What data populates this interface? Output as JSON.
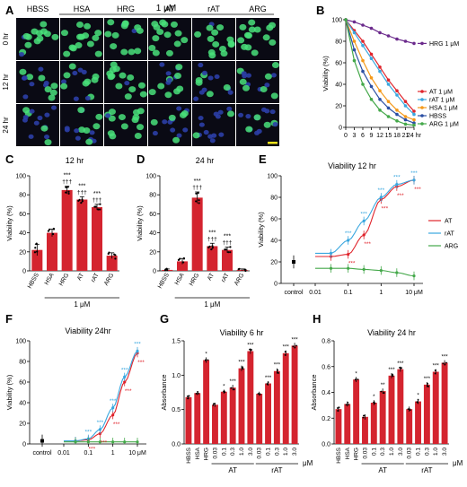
{
  "panel_letters": {
    "A": "A",
    "B": "B",
    "C": "C",
    "D": "D",
    "E": "E",
    "F": "F",
    "G": "G",
    "H": "H"
  },
  "microscopy": {
    "concentration": "1 μM",
    "columns": [
      "HBSS",
      "HSA",
      "HRG",
      "AT",
      "rAT",
      "ARG"
    ],
    "rows": [
      "0 hr",
      "12 hr",
      "24 hr"
    ],
    "colors": {
      "nuclei": "#2b3ea6",
      "cells": "#49e07a",
      "background": "#0a0a14",
      "scale_bar": "#f2e21a"
    }
  },
  "chart_data": [
    {
      "panel": "B",
      "type": "line",
      "ylabel": "Viability (%)",
      "xlabel": "",
      "x": [
        0,
        3,
        6,
        9,
        12,
        15,
        18,
        21,
        24
      ],
      "xticks": [
        "0",
        "3",
        "6",
        "9",
        "12",
        "15",
        "18",
        "21",
        "24 hr"
      ],
      "ylim": [
        0,
        100
      ],
      "yticks": [
        0,
        20,
        40,
        60,
        80,
        100
      ],
      "series": [
        {
          "name": "HRG 1 μM",
          "color": "#6b2a8c",
          "values": [
            100,
            98,
            95,
            92,
            88,
            85,
            82,
            80,
            78
          ]
        },
        {
          "name": "AT 1 μM",
          "color": "#e0242c",
          "values": [
            100,
            90,
            80,
            68,
            56,
            44,
            34,
            24,
            15
          ]
        },
        {
          "name": "rAT 1 μM",
          "color": "#3aa7df",
          "values": [
            100,
            88,
            76,
            64,
            52,
            40,
            30,
            20,
            12
          ]
        },
        {
          "name": "HSA 1 μM",
          "color": "#f59a1b",
          "values": [
            100,
            80,
            62,
            46,
            34,
            24,
            16,
            10,
            7
          ]
        },
        {
          "name": "HBSS",
          "color": "#2b4fa3",
          "values": [
            100,
            72,
            52,
            38,
            26,
            18,
            12,
            7,
            4
          ]
        },
        {
          "name": "ARG 1 μM",
          "color": "#44a84a",
          "values": [
            100,
            62,
            40,
            26,
            16,
            10,
            6,
            3,
            2
          ]
        }
      ],
      "legend_position": "right"
    },
    {
      "panel": "C",
      "type": "bar",
      "title": "12 hr",
      "ylabel": "Viability (%)",
      "categories": [
        "HBSS",
        "HSA",
        "HRG",
        "AT",
        "rAT",
        "ARG"
      ],
      "values": [
        22,
        40,
        85,
        75,
        67,
        16
      ],
      "errors": [
        6,
        4,
        4,
        3,
        3,
        3
      ],
      "ylim": [
        0,
        100
      ],
      "yticks": [
        0,
        20,
        40,
        60,
        80,
        100
      ],
      "sig_top": [
        "",
        "",
        "***",
        "***",
        "***",
        ""
      ],
      "sig_bottom": [
        "",
        "",
        "†††",
        "†††",
        "†††",
        ""
      ],
      "group_label": "1 μM",
      "color": "#d4242f"
    },
    {
      "panel": "D",
      "type": "bar",
      "title": "24 hr",
      "ylabel": "Viability (%)",
      "categories": [
        "HBSS",
        "HSA",
        "HRG",
        "AT",
        "rAT",
        "ARG"
      ],
      "values": [
        1,
        10,
        77,
        26,
        22,
        1
      ],
      "errors": [
        1,
        3,
        6,
        3,
        3,
        1
      ],
      "ylim": [
        0,
        100
      ],
      "yticks": [
        0,
        20,
        40,
        60,
        80,
        100
      ],
      "sig_top": [
        "",
        "",
        "***",
        "***",
        "***",
        ""
      ],
      "sig_bottom": [
        "",
        "",
        "†††",
        "†††",
        "†††",
        ""
      ],
      "group_label": "1 μM",
      "color": "#d4242f"
    },
    {
      "panel": "E",
      "type": "line",
      "title": "Viability 12 hr",
      "ylabel": "Viability (%)",
      "x": [
        0.03,
        0.1,
        0.3,
        1,
        3,
        10
      ],
      "xticks": [
        "control",
        "0.01",
        "0.1",
        "1",
        "10 μM"
      ],
      "ylim": [
        0,
        100
      ],
      "yticks": [
        0,
        20,
        40,
        60,
        80,
        100
      ],
      "control": 20,
      "series": [
        {
          "name": "AT",
          "color": "#e0242c",
          "values": [
            25,
            27,
            45,
            78,
            90,
            96
          ]
        },
        {
          "name": "rAT",
          "color": "#3aa7df",
          "values": [
            28,
            40,
            58,
            80,
            92,
            96
          ]
        },
        {
          "name": "ARG",
          "color": "#44a84a",
          "values": [
            14,
            14,
            13,
            12,
            10,
            7
          ]
        }
      ],
      "legend_position": "right"
    },
    {
      "panel": "F",
      "type": "line",
      "title": "Viability 24hr",
      "ylabel": "Viability (%)",
      "x": [
        0.03,
        0.1,
        0.3,
        1,
        3,
        10
      ],
      "xticks": [
        "control",
        "0.01",
        "0.1",
        "1",
        "10 μM"
      ],
      "ylim": [
        0,
        100
      ],
      "yticks": [
        0,
        20,
        40,
        60,
        80,
        100
      ],
      "control": 3,
      "series": [
        {
          "name": "AT",
          "color": "#e0242c",
          "values": [
            3,
            4,
            10,
            28,
            60,
            88
          ]
        },
        {
          "name": "rAT",
          "color": "#3aa7df",
          "values": [
            3,
            5,
            14,
            35,
            65,
            90
          ]
        },
        {
          "name": "ARG",
          "color": "#44a84a",
          "values": [
            2,
            2,
            2,
            2,
            2,
            2
          ]
        }
      ]
    },
    {
      "panel": "G",
      "type": "bar",
      "title": "Viability 6 hr",
      "ylabel": "Absorbance",
      "categories": [
        "HBSS",
        "HSA",
        "HRG",
        "0.03",
        "0.1",
        "0.3",
        "1.0",
        "3.0",
        "0.03",
        "0.1",
        "0.3",
        "1.0",
        "3.0"
      ],
      "values": [
        0.68,
        0.74,
        1.22,
        0.57,
        0.76,
        0.82,
        1.1,
        1.35,
        0.73,
        0.88,
        1.06,
        1.32,
        1.43
      ],
      "errors": [
        0.03,
        0.03,
        0.04,
        0.03,
        0.03,
        0.04,
        0.04,
        0.04,
        0.03,
        0.03,
        0.04,
        0.04,
        0.04
      ],
      "ylim": [
        0,
        1.5
      ],
      "yticks": [
        0.0,
        0.5,
        1.0,
        1.5
      ],
      "sig": [
        "",
        "",
        "*",
        "",
        "*",
        "***",
        "***",
        "***",
        "",
        "***",
        "***",
        "***",
        "***"
      ],
      "groups": [
        {
          "label": "AT",
          "from": 3,
          "to": 7
        },
        {
          "label": "rAT",
          "from": 8,
          "to": 12
        }
      ],
      "unit": "μM",
      "color": "#d4242f"
    },
    {
      "panel": "H",
      "type": "bar",
      "title": "Viability 24 hr",
      "ylabel": "Absorbance",
      "categories": [
        "HBSS",
        "HSA",
        "HRG",
        "0.03",
        "0.1",
        "0.3",
        "1.0",
        "3.0",
        "0.03",
        "0.1",
        "0.3",
        "1.0",
        "3.0"
      ],
      "values": [
        0.27,
        0.31,
        0.5,
        0.21,
        0.32,
        0.41,
        0.53,
        0.58,
        0.27,
        0.33,
        0.46,
        0.56,
        0.63
      ],
      "errors": [
        0.02,
        0.02,
        0.02,
        0.02,
        0.02,
        0.02,
        0.02,
        0.02,
        0.02,
        0.02,
        0.02,
        0.02,
        0.02
      ],
      "ylim": [
        0,
        0.8
      ],
      "yticks": [
        0.0,
        0.2,
        0.4,
        0.6,
        0.8
      ],
      "sig": [
        "",
        "",
        "*",
        "",
        "*",
        "**",
        "***",
        "***",
        "",
        "*",
        "***",
        "***",
        "***"
      ],
      "groups": [
        {
          "label": "AT",
          "from": 3,
          "to": 7
        },
        {
          "label": "rAT",
          "from": 8,
          "to": 12
        }
      ],
      "unit": "μM",
      "color": "#d4242f"
    }
  ]
}
